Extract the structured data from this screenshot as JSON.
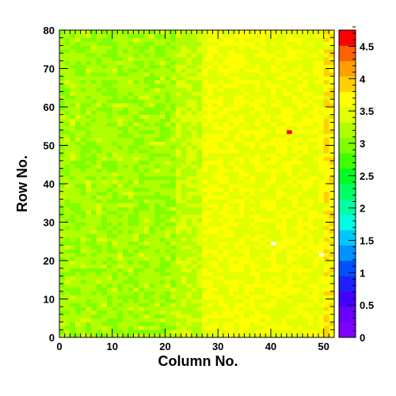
{
  "chart_data": {
    "type": "heatmap",
    "xlabel": "Column No.",
    "ylabel": "Row No.",
    "xlim": [
      0,
      52
    ],
    "ylim": [
      0,
      80
    ],
    "x_ticks": [
      "0",
      "10",
      "20",
      "30",
      "40",
      "50"
    ],
    "y_ticks": [
      "0",
      "10",
      "20",
      "30",
      "40",
      "50",
      "60",
      "70",
      "80"
    ],
    "x_tick_values": [
      0,
      10,
      20,
      30,
      40,
      50
    ],
    "y_tick_values": [
      0,
      10,
      20,
      30,
      40,
      50,
      60,
      70,
      80
    ],
    "colorbar": {
      "range": [
        0,
        4.75
      ],
      "tick_labels": [
        "0",
        "0.5",
        "1",
        "1.5",
        "2",
        "2.5",
        "3",
        "3.5",
        "4",
        "4.5"
      ],
      "tick_values": [
        0,
        0.5,
        1,
        1.5,
        2,
        2.5,
        3,
        3.5,
        4,
        4.5
      ],
      "colors": [
        "#8000ff",
        "#6a00ff",
        "#4400ff",
        "#2020ff",
        "#0050ff",
        "#0090ff",
        "#00c8ff",
        "#00ffe0",
        "#00ffa0",
        "#00ff60",
        "#00ff20",
        "#40ff00",
        "#80ff00",
        "#b0ff00",
        "#e0ff00",
        "#ffff00",
        "#ffd000",
        "#ffa000",
        "#ff6000",
        "#ff0000"
      ]
    },
    "column_profile": [
      {
        "from": 0,
        "to": 22,
        "mean": 3.15
      },
      {
        "from": 22,
        "to": 27,
        "mean": 3.3
      },
      {
        "from": 27,
        "to": 50,
        "mean": 3.55
      },
      {
        "from": 50,
        "to": 52,
        "mean": 3.75
      }
    ],
    "special_cells": [
      {
        "col": 43,
        "row": 53,
        "value": 4.75
      },
      {
        "col": 40,
        "row": 24,
        "value": 0
      },
      {
        "col": 49,
        "row": 21,
        "value": 0
      }
    ]
  }
}
